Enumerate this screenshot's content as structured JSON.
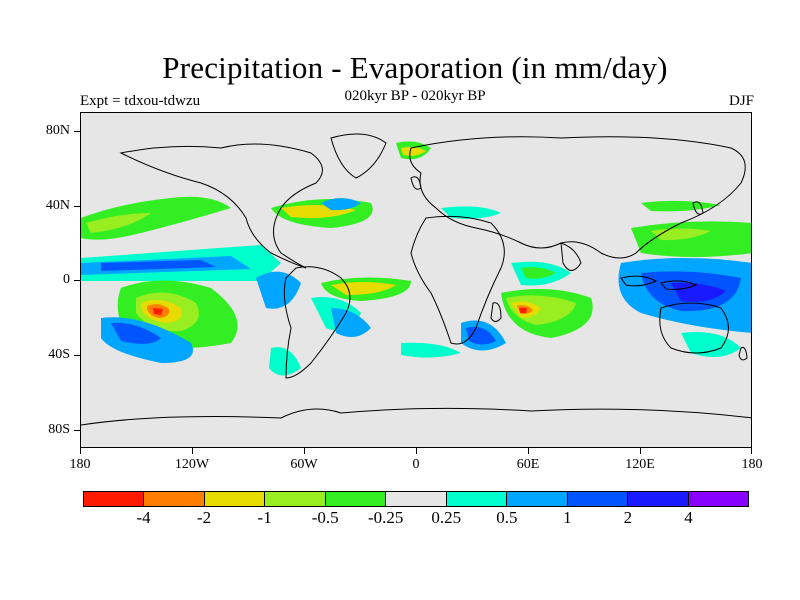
{
  "title": "Precipitation - Evaporation (in mm/day)",
  "subtitle": "020kyr BP - 020kyr BP",
  "expt": "Expt = tdxou-tdwzu",
  "season": "DJF",
  "y_axis_labels": [
    "80N",
    "40N",
    "0",
    "40S",
    "80S"
  ],
  "x_axis_labels": [
    "180",
    "120W",
    "60W",
    "0",
    "60E",
    "120E",
    "180"
  ],
  "colorbar": {
    "colors": [
      "#ff1a00",
      "#ff8000",
      "#e6dc00",
      "#99ee22",
      "#33ee22",
      "#e6e6e6",
      "#00ffcc",
      "#00a6ff",
      "#0055ff",
      "#1a1aff",
      "#8800ff"
    ],
    "labels": [
      "-4",
      "-2",
      "-1",
      "-0.5",
      "-0.25",
      "0.25",
      "0.5",
      "1",
      "2",
      "4"
    ]
  },
  "land_color": "#e6e6e6",
  "coast_color": "#000000"
}
